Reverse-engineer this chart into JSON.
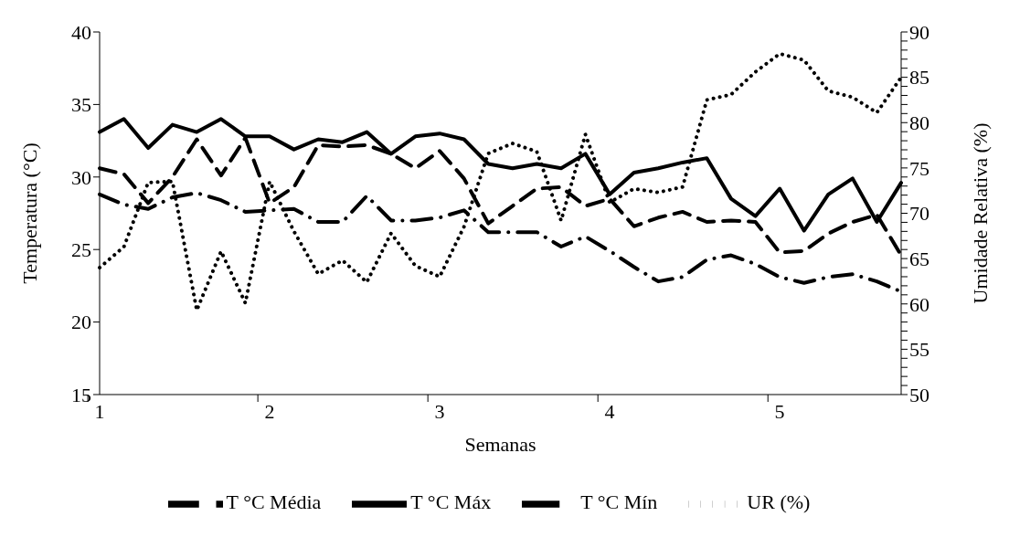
{
  "chart_data": {
    "type": "line",
    "xlabel": "Semanas",
    "ylabel": "Temperatura (°C)",
    "y2label": "Umidade Relativa (%)",
    "categories": [
      "1",
      null,
      null,
      null,
      null,
      null,
      null,
      "2",
      null,
      null,
      null,
      null,
      null,
      null,
      "3",
      null,
      null,
      null,
      null,
      null,
      null,
      "4",
      null,
      null,
      null,
      null,
      null,
      null,
      "5",
      null,
      null,
      null,
      null,
      null
    ],
    "series": [
      {
        "name": "T °C Média",
        "color": "#000000",
        "line_style": "dashed",
        "values": [
          30.6,
          30.2,
          28.2,
          30.0,
          32.6,
          30.1,
          32.7,
          28.2,
          29.3,
          32.2,
          32.1,
          32.2,
          31.6,
          30.6,
          31.8,
          29.9,
          26.8,
          28.0,
          29.2,
          29.3,
          28.0,
          28.5,
          26.6,
          27.2,
          27.6,
          26.9,
          27.0,
          26.9,
          24.8,
          24.9,
          26.1,
          26.9,
          27.4,
          24.6
        ]
      },
      {
        "name": "T °C Máx",
        "color": "#000000",
        "line_style": "solid",
        "values": [
          33.1,
          34.0,
          32.0,
          33.6,
          33.1,
          34.0,
          32.8,
          32.8,
          31.9,
          32.6,
          32.4,
          33.1,
          31.6,
          32.8,
          33.0,
          32.6,
          30.9,
          30.6,
          30.9,
          30.6,
          31.6,
          28.8,
          30.3,
          30.6,
          31.0,
          31.3,
          28.5,
          27.3,
          29.2,
          26.3,
          28.8,
          29.9,
          26.9,
          29.6
        ]
      },
      {
        "name": "T °C Mín",
        "color": "#000000",
        "line_style": "dashdot",
        "values": [
          28.8,
          28.1,
          27.8,
          28.6,
          28.9,
          28.4,
          27.6,
          27.7,
          27.8,
          26.9,
          26.9,
          28.7,
          27.0,
          27.0,
          27.2,
          27.7,
          26.2,
          26.2,
          26.2,
          25.2,
          25.9,
          24.9,
          23.8,
          22.8,
          23.1,
          24.3,
          24.6,
          24.0,
          23.1,
          22.7,
          23.1,
          23.3,
          22.8,
          22.1
        ]
      },
      {
        "name": "UR (%)",
        "color": "#000000",
        "line_style": "dotted",
        "axis": "y2",
        "values": [
          64.0,
          66.3,
          73.4,
          73.5,
          59.3,
          65.8,
          60.1,
          73.5,
          68.0,
          63.3,
          64.8,
          62.4,
          67.8,
          64.2,
          63.0,
          68.5,
          76.6,
          77.7,
          76.8,
          69.2,
          78.7,
          71.2,
          72.7,
          72.3,
          72.9,
          82.5,
          83.1,
          85.6,
          87.6,
          86.9,
          83.5,
          82.8,
          81.1,
          85.0
        ]
      }
    ],
    "ylim": [
      15,
      40
    ],
    "yticks": [
      15,
      20,
      25,
      30,
      35,
      40
    ],
    "y2lim": [
      50,
      90
    ],
    "y2ticks": [
      50,
      {
        "value": 51,
        "label": null
      },
      {
        "value": 52,
        "label": null
      },
      {
        "value": 53,
        "label": null
      },
      {
        "value": 54,
        "label": null
      },
      55,
      {
        "value": 56,
        "label": null
      },
      {
        "value": 57,
        "label": null
      },
      {
        "value": 58,
        "label": null
      },
      {
        "value": 59,
        "label": null
      },
      60,
      {
        "value": 61,
        "label": null
      },
      {
        "value": 62,
        "label": null
      },
      {
        "value": 63,
        "label": null
      },
      {
        "value": 64,
        "label": null
      },
      65,
      {
        "value": 66,
        "label": null
      },
      {
        "value": 67,
        "label": null
      },
      {
        "value": 68,
        "label": null
      },
      {
        "value": 69,
        "label": null
      },
      70,
      {
        "value": 71,
        "label": null
      },
      {
        "value": 72,
        "label": null
      },
      {
        "value": 73,
        "label": null
      },
      {
        "value": 74,
        "label": null
      },
      75,
      {
        "value": 76,
        "label": null
      },
      {
        "value": 77,
        "label": null
      },
      {
        "value": 78,
        "label": null
      },
      {
        "value": 79,
        "label": null
      },
      80,
      {
        "value": 81,
        "label": null
      },
      {
        "value": 82,
        "label": null
      },
      {
        "value": 83,
        "label": null
      },
      {
        "value": 84,
        "label": null
      },
      85,
      {
        "value": 86,
        "label": null
      },
      {
        "value": 87,
        "label": null
      },
      {
        "value": 88,
        "label": null
      },
      {
        "value": 89,
        "label": null
      },
      90
    ],
    "grid": false,
    "legend": "bottom",
    "marker": "none"
  }
}
